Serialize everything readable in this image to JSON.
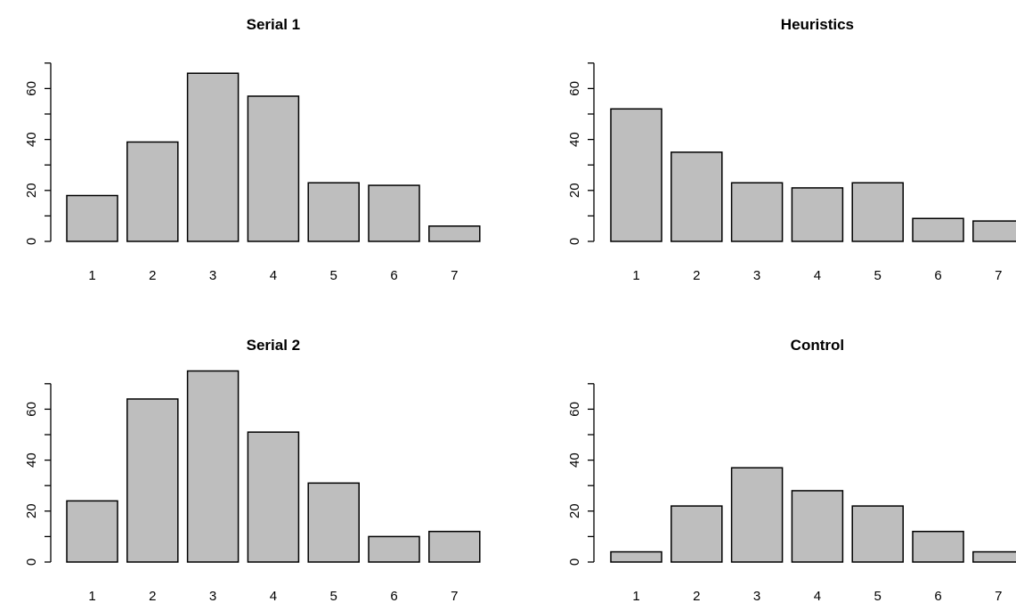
{
  "chart_data": [
    {
      "type": "bar",
      "title": "Serial 1",
      "categories": [
        "1",
        "2",
        "3",
        "4",
        "5",
        "6",
        "7"
      ],
      "values": [
        18,
        39,
        66,
        57,
        23,
        22,
        6
      ],
      "yticks": [
        "0",
        "20",
        "40",
        "60"
      ],
      "ylim": [
        0,
        70
      ],
      "bar_color": "#bebebe"
    },
    {
      "type": "bar",
      "title": "Heuristics",
      "categories": [
        "1",
        "2",
        "3",
        "4",
        "5",
        "6",
        "7"
      ],
      "values": [
        52,
        35,
        23,
        21,
        23,
        9,
        8
      ],
      "yticks": [
        "0",
        "20",
        "40",
        "60"
      ],
      "ylim": [
        0,
        70
      ],
      "bar_color": "#bebebe"
    },
    {
      "type": "bar",
      "title": "Serial 2",
      "categories": [
        "1",
        "2",
        "3",
        "4",
        "5",
        "6",
        "7"
      ],
      "values": [
        24,
        64,
        75,
        51,
        31,
        10,
        12
      ],
      "yticks": [
        "0",
        "20",
        "40",
        "60"
      ],
      "ylim": [
        0,
        70
      ],
      "bar_color": "#bebebe"
    },
    {
      "type": "bar",
      "title": "Control",
      "categories": [
        "1",
        "2",
        "3",
        "4",
        "5",
        "6",
        "7"
      ],
      "values": [
        4,
        22,
        37,
        28,
        22,
        12,
        4
      ],
      "yticks": [
        "0",
        "20",
        "40",
        "60"
      ],
      "ylim": [
        0,
        70
      ],
      "bar_color": "#bebebe"
    }
  ]
}
